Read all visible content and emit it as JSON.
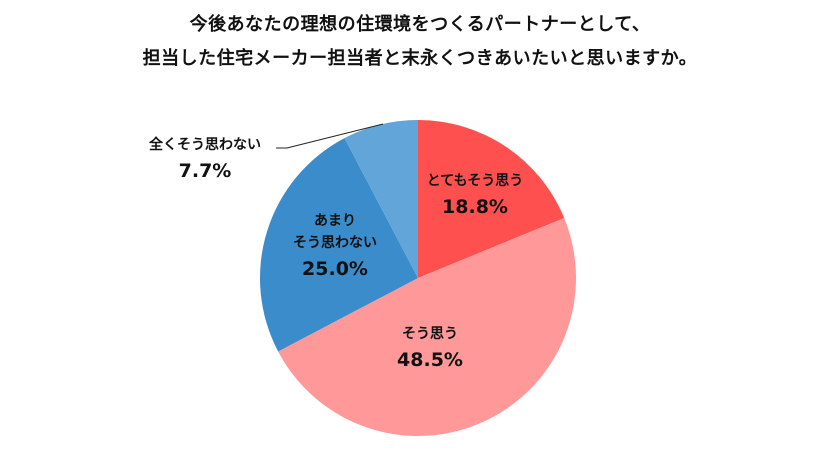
{
  "chart_data": {
    "type": "pie",
    "title": "今後あなたの理想の住環境をつくるパートナーとして、担当した住宅メーカー担当者と末永くつきあいたいと思いますか。",
    "title_lines": [
      "今後あなたの理想の住環境をつくるパートナーとして、",
      "担当した住宅メーカー担当者と末永くつきあいたいと思いますか。"
    ],
    "start_angle": "12 o'clock",
    "direction": "clockwise",
    "legend": "none (labels on slices)",
    "slices": [
      {
        "label": "とてもそう思う",
        "value": 18.8,
        "display": "18.8%",
        "color": "#FF5050"
      },
      {
        "label": "そう思う",
        "value": 48.5,
        "display": "48.5%",
        "color": "#FF9999"
      },
      {
        "label": "あまりそう思わない",
        "label_lines": [
          "あまり",
          "そう思わない"
        ],
        "value": 25.0,
        "display": "25.0%",
        "color": "#3A8CCB"
      },
      {
        "label": "全くそう思わない",
        "value": 7.7,
        "display": "7.7%",
        "color": "#62A5D8"
      }
    ]
  }
}
